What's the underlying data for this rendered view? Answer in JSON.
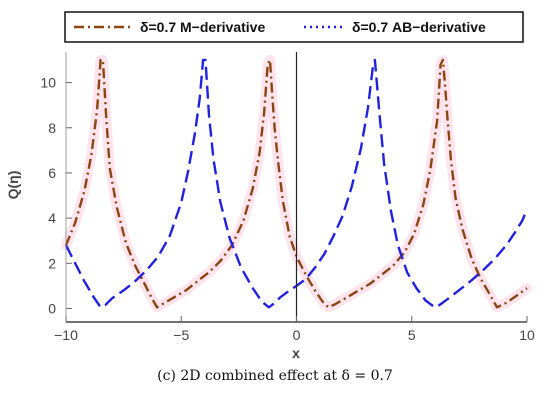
{
  "chart_data": {
    "type": "line",
    "title": "",
    "xlabel": "x",
    "ylabel": "Q(η)",
    "xlim": [
      -10,
      10
    ],
    "ylim": [
      -0.6,
      11
    ],
    "xticks": [
      -10,
      -5,
      0,
      5,
      10
    ],
    "yticks": [
      0,
      2,
      4,
      6,
      8,
      10
    ],
    "legend_position": "top",
    "series": [
      {
        "name": "δ=0.7 M−derivative",
        "style": "dashdot",
        "color": "#8B4513",
        "shade": "#FFE4EE",
        "x": [
          -10,
          -9.6,
          -9.2,
          -8.9,
          -8.65,
          -8.5,
          -8.4,
          -8.25,
          -8.1,
          -7.8,
          -7.4,
          -7,
          -6.6,
          -6.3,
          -6.05,
          -5.8,
          -5.3,
          -4.8,
          -4.3,
          -3.8,
          -3.3,
          -2.8,
          -2.3,
          -1.9,
          -1.6,
          -1.4,
          -1.25,
          -1.15,
          -1.05,
          -0.95,
          -0.8,
          -0.6,
          -0.3,
          0,
          0.4,
          0.8,
          1.2,
          1.4,
          1.7,
          2.2,
          2.7,
          3.2,
          3.7,
          4.2,
          4.7,
          5.1,
          5.5,
          5.8,
          6.1,
          6.25,
          6.35,
          6.45,
          6.55,
          6.7,
          6.9,
          7.2,
          7.6,
          8,
          8.4,
          8.7,
          9.1,
          9.6,
          10
        ],
        "y": [
          2.8,
          3.8,
          5.2,
          6.8,
          8.8,
          11,
          11,
          8.4,
          6.2,
          4.5,
          2.9,
          1.9,
          1.1,
          0.5,
          0.05,
          0.2,
          0.5,
          0.8,
          1.2,
          1.6,
          2.1,
          2.8,
          3.9,
          5.3,
          6.9,
          8.7,
          10.8,
          11,
          9.4,
          8,
          6.5,
          4.8,
          3.2,
          2.3,
          1.5,
          0.8,
          0.2,
          0.05,
          0.2,
          0.5,
          0.8,
          1.1,
          1.5,
          1.9,
          2.5,
          3.3,
          4.6,
          6.1,
          8.3,
          10.8,
          11,
          9.8,
          8.4,
          6.6,
          4.9,
          3.5,
          2.2,
          1.3,
          0.6,
          0.05,
          0.25,
          0.6,
          0.9
        ]
      },
      {
        "name": "δ=0.7 AB−derivative",
        "style": "dashed",
        "color": "#2222DD",
        "x": [
          -10,
          -9.6,
          -9.2,
          -8.8,
          -8.5,
          -8.3,
          -8,
          -7.5,
          -7,
          -6.5,
          -6,
          -5.5,
          -5,
          -4.7,
          -4.4,
          -4.2,
          -4.05,
          -3.95,
          -3.8,
          -3.6,
          -3.3,
          -2.9,
          -2.4,
          -1.9,
          -1.5,
          -1.2,
          -1,
          -0.7,
          -0.3,
          0,
          0.4,
          0.8,
          1.2,
          1.6,
          2,
          2.4,
          2.8,
          3.1,
          3.3,
          3.4,
          3.6,
          3.8,
          4.1,
          4.4,
          4.8,
          5.2,
          5.6,
          6,
          6.2,
          6.6,
          7.1,
          7.6,
          8.1,
          8.6,
          9.1,
          9.5,
          9.8,
          10
        ],
        "y": [
          2.8,
          2,
          1.2,
          0.5,
          0.05,
          0.15,
          0.45,
          0.8,
          1.2,
          1.7,
          2.3,
          3.2,
          4.7,
          6.1,
          7.8,
          9.3,
          11,
          11,
          8.6,
          6.6,
          4.7,
          3.1,
          1.8,
          0.9,
          0.3,
          0.05,
          0.2,
          0.5,
          0.8,
          1,
          1.3,
          1.8,
          2.4,
          3.2,
          4.1,
          5.4,
          7.1,
          8.9,
          10.6,
          11,
          8.6,
          6.4,
          4.3,
          2.8,
          1.6,
          0.9,
          0.35,
          0.05,
          0.15,
          0.45,
          0.85,
          1.25,
          1.7,
          2.2,
          2.8,
          3.4,
          3.9,
          4.4
        ]
      }
    ],
    "caption": "(c) 2D combined effect at δ = 0.7"
  }
}
